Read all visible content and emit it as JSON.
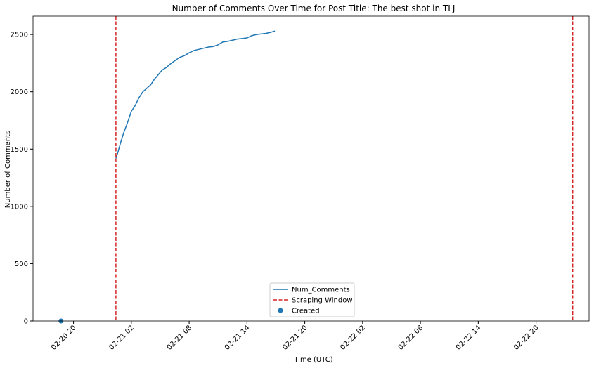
{
  "chart_data": {
    "type": "line",
    "title": "Number of Comments Over Time for Post Title: The best shot in TLJ",
    "xlabel": "Time (UTC)",
    "ylabel": "Number of Comments",
    "x_tick_labels": [
      "02-20 20",
      "02-21 02",
      "02-21 08",
      "02-21 14",
      "02-21 20",
      "02-22 02",
      "02-22 08",
      "02-22 14",
      "02-22 20"
    ],
    "x_tick_hours": [
      20,
      26,
      32,
      38,
      44,
      50,
      56,
      62,
      68
    ],
    "xlim_hours": [
      15.8,
      73.5
    ],
    "y_ticks": [
      0,
      500,
      1000,
      1500,
      2000,
      2500
    ],
    "ylim": [
      0,
      2660
    ],
    "x_unit_note": "hours after 2018-02-20 00:00 UTC",
    "series": [
      {
        "name": "Num_Comments",
        "color": "#1f77b4",
        "x_hours": [
          24.4,
          24.6,
          24.9,
          25.2,
          25.6,
          26.0,
          26.4,
          26.8,
          27.2,
          27.6,
          28.0,
          28.4,
          28.8,
          29.2,
          29.6,
          30.0,
          30.5,
          31.0,
          31.5,
          32.0,
          32.5,
          33.0,
          33.5,
          34.0,
          34.5,
          35.0,
          35.5,
          36.0,
          36.5,
          37.0,
          37.5,
          38.0,
          38.5,
          39.0,
          39.5,
          40.0,
          40.5,
          40.9
        ],
        "values": [
          1420,
          1470,
          1560,
          1640,
          1730,
          1830,
          1880,
          1950,
          2000,
          2030,
          2060,
          2110,
          2150,
          2190,
          2210,
          2240,
          2270,
          2300,
          2315,
          2340,
          2360,
          2370,
          2380,
          2390,
          2395,
          2410,
          2435,
          2440,
          2450,
          2460,
          2465,
          2470,
          2490,
          2500,
          2505,
          2510,
          2520,
          2530
        ]
      }
    ],
    "scraping_window": {
      "label": "Scraping Window",
      "color": "#d62728",
      "x_hours": [
        24.4,
        71.8
      ]
    },
    "created": {
      "label": "Created",
      "color": "#1f77b4",
      "x_hours": 18.7,
      "value": 0
    },
    "legend_position": "bottom-center",
    "grid": false
  }
}
